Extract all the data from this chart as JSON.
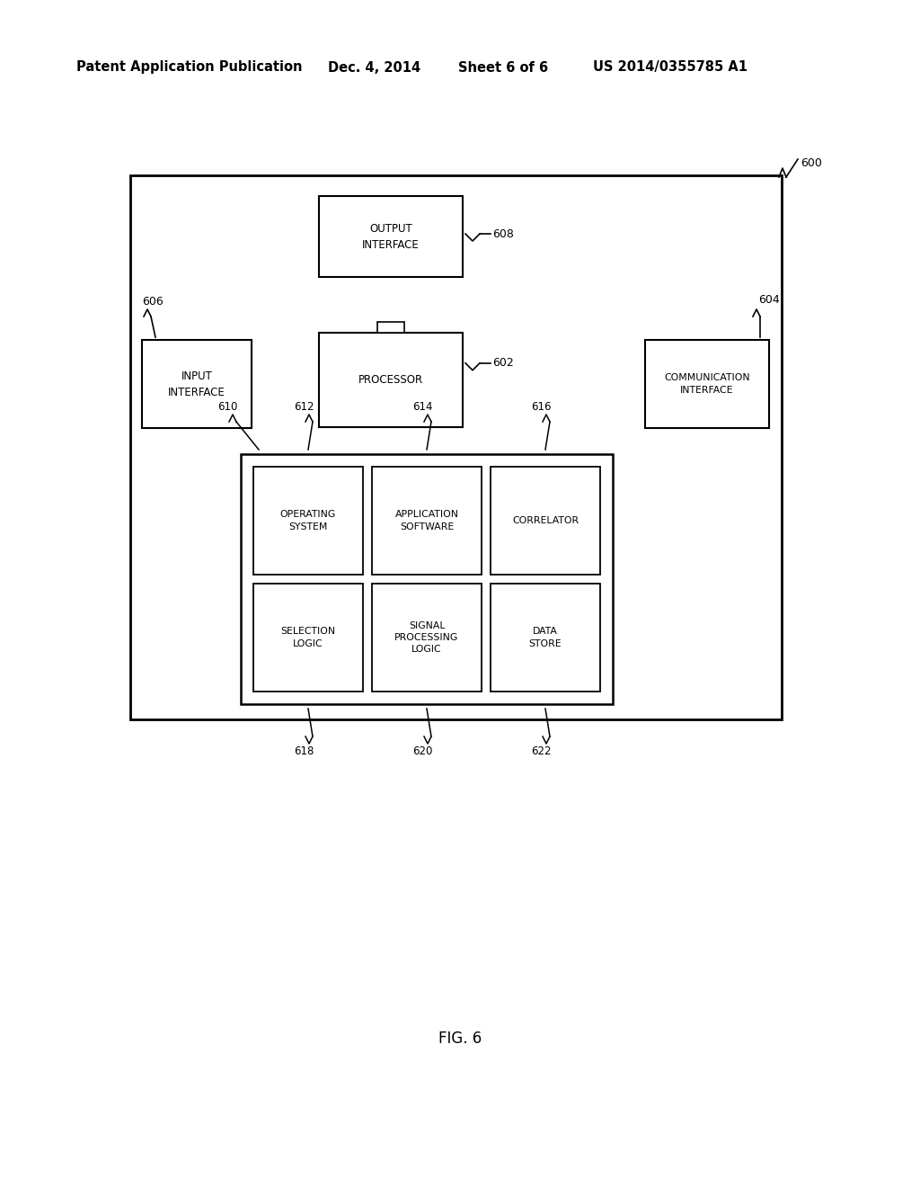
{
  "bg_color": "#ffffff",
  "line_color": "#000000",
  "header_text": "Patent Application Publication",
  "header_date": "Dec. 4, 2014",
  "header_sheet": "Sheet 6 of 6",
  "header_patent": "US 2014/0355785 A1",
  "fig_label": "FIG. 6",
  "refs": {
    "600": "600",
    "602": "602",
    "604": "604",
    "606": "606",
    "608": "608",
    "610": "610",
    "612": "612",
    "614": "614",
    "616": "616",
    "618": "618",
    "620": "620",
    "622": "622"
  },
  "labels": {
    "output_interface": "OUTPUT\nINTERFACE",
    "processor": "PROCESSOR",
    "input_interface": "INPUT\nINTERFACE",
    "comm_interface": "COMMUNICATION\nINTERFACE",
    "operating_system": "OPERATING\nSYSTEM",
    "app_software": "APPLICATION\nSOFTWARE",
    "correlator": "CORRELATOR",
    "selection_logic": "SELECTION\nLOGIC",
    "signal_proc": "SIGNAL\nPROCESSING\nLOGIC",
    "data_store": "DATA\nSTORE"
  }
}
